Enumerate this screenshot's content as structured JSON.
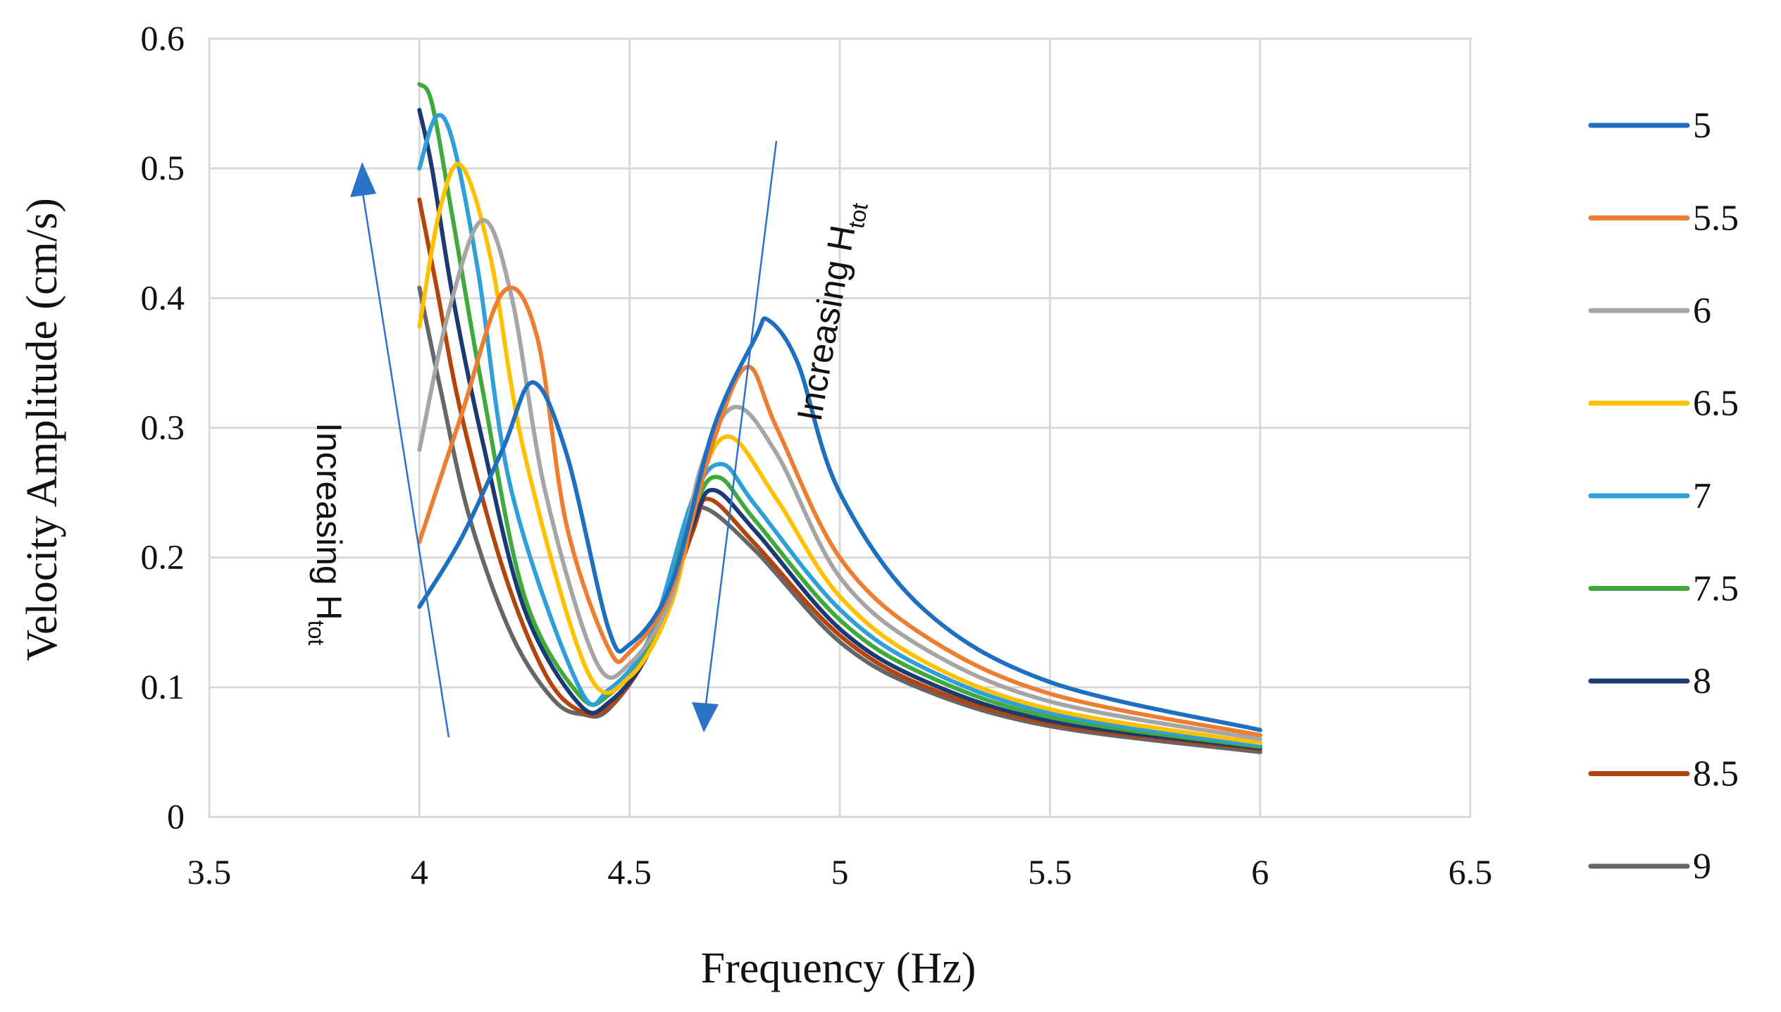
{
  "chart_data": {
    "type": "line",
    "title": "",
    "xlabel": "Frequency (Hz)",
    "ylabel": "Velocity Amplitude (cm/s)",
    "xlim": [
      3.5,
      6.5
    ],
    "ylim": [
      0,
      0.6
    ],
    "xticks": [
      3.5,
      4,
      4.5,
      5,
      5.5,
      6,
      6.5
    ],
    "xtick_labels": [
      "3.5",
      "4",
      "4.5",
      "5",
      "5.5",
      "6",
      "6.5"
    ],
    "yticks": [
      0,
      0.1,
      0.2,
      0.3,
      0.4,
      0.5,
      0.6
    ],
    "ytick_labels": [
      "0",
      "0.1",
      "0.2",
      "0.3",
      "0.4",
      "0.5",
      "0.6"
    ],
    "grid": true,
    "legend_position": "right",
    "series": [
      {
        "name": "5",
        "color": "#1f6fc1",
        "x": [
          4.0,
          4.1,
          4.2,
          4.27,
          4.35,
          4.45,
          4.5,
          4.6,
          4.7,
          4.8,
          4.83,
          4.9,
          5.0,
          5.2,
          5.5,
          6.0
        ],
        "y": [
          0.162,
          0.215,
          0.285,
          0.335,
          0.28,
          0.145,
          0.133,
          0.18,
          0.3,
          0.37,
          0.383,
          0.35,
          0.25,
          0.16,
          0.104,
          0.067
        ]
      },
      {
        "name": "5.5",
        "color": "#ed7d31",
        "x": [
          4.0,
          4.1,
          4.2,
          4.28,
          4.35,
          4.45,
          4.5,
          4.6,
          4.7,
          4.78,
          4.85,
          5.0,
          5.2,
          5.5,
          6.0
        ],
        "y": [
          0.212,
          0.31,
          0.405,
          0.37,
          0.225,
          0.13,
          0.127,
          0.175,
          0.29,
          0.347,
          0.3,
          0.2,
          0.14,
          0.095,
          0.063
        ]
      },
      {
        "name": "6",
        "color": "#a5a5a5",
        "x": [
          4.0,
          4.07,
          4.15,
          4.22,
          4.3,
          4.42,
          4.5,
          4.6,
          4.67,
          4.75,
          4.85,
          5.0,
          5.2,
          5.5,
          6.0
        ],
        "y": [
          0.283,
          0.39,
          0.46,
          0.4,
          0.25,
          0.12,
          0.118,
          0.17,
          0.27,
          0.316,
          0.28,
          0.185,
          0.13,
          0.089,
          0.06
        ]
      },
      {
        "name": "6.5",
        "color": "#ffc000",
        "x": [
          4.0,
          4.05,
          4.1,
          4.17,
          4.25,
          4.4,
          4.5,
          4.6,
          4.67,
          4.74,
          4.85,
          5.0,
          5.2,
          5.5,
          6.0
        ],
        "y": [
          0.378,
          0.47,
          0.502,
          0.43,
          0.28,
          0.112,
          0.108,
          0.165,
          0.26,
          0.293,
          0.245,
          0.17,
          0.12,
          0.083,
          0.057
        ]
      },
      {
        "name": "7",
        "color": "#2e9fd8",
        "x": [
          4.0,
          4.04,
          4.08,
          4.14,
          4.22,
          4.38,
          4.45,
          4.55,
          4.65,
          4.72,
          4.8,
          5.0,
          5.2,
          5.5,
          6.0
        ],
        "y": [
          0.5,
          0.54,
          0.52,
          0.42,
          0.25,
          0.1,
          0.098,
          0.14,
          0.245,
          0.272,
          0.24,
          0.16,
          0.115,
          0.08,
          0.055
        ]
      },
      {
        "name": "7.5",
        "color": "#3faa3b",
        "x": [
          4.0,
          4.03,
          4.08,
          4.15,
          4.25,
          4.38,
          4.45,
          4.55,
          4.65,
          4.71,
          4.8,
          5.0,
          5.2,
          5.5,
          6.0
        ],
        "y": [
          0.565,
          0.55,
          0.46,
          0.33,
          0.17,
          0.094,
          0.094,
          0.135,
          0.235,
          0.262,
          0.228,
          0.152,
          0.11,
          0.077,
          0.054
        ]
      },
      {
        "name": "8",
        "color": "#1b3a74",
        "x": [
          4.0,
          4.03,
          4.08,
          4.15,
          4.25,
          4.38,
          4.45,
          4.55,
          4.65,
          4.7,
          4.8,
          5.0,
          5.2,
          5.5,
          6.0
        ],
        "y": [
          0.545,
          0.5,
          0.4,
          0.29,
          0.16,
          0.087,
          0.088,
          0.13,
          0.225,
          0.252,
          0.22,
          0.145,
          0.105,
          0.074,
          0.053
        ]
      },
      {
        "name": "8.5",
        "color": "#b1450d",
        "x": [
          4.0,
          4.04,
          4.1,
          4.2,
          4.3,
          4.38,
          4.45,
          4.55,
          4.65,
          4.69,
          4.8,
          5.0,
          5.2,
          5.5,
          6.0
        ],
        "y": [
          0.476,
          0.41,
          0.31,
          0.19,
          0.11,
          0.082,
          0.085,
          0.13,
          0.22,
          0.245,
          0.21,
          0.14,
          0.101,
          0.072,
          0.052
        ]
      },
      {
        "name": "9",
        "color": "#666666",
        "x": [
          4.0,
          4.05,
          4.12,
          4.22,
          4.32,
          4.39,
          4.45,
          4.55,
          4.65,
          4.68,
          4.8,
          5.0,
          5.2,
          5.5,
          6.0
        ],
        "y": [
          0.408,
          0.33,
          0.23,
          0.14,
          0.09,
          0.079,
          0.083,
          0.13,
          0.22,
          0.238,
          0.205,
          0.135,
          0.098,
          0.07,
          0.05
        ]
      }
    ],
    "annotations": [
      {
        "id": "left",
        "text": "Increasing H",
        "subscript": "tot"
      },
      {
        "id": "right",
        "text": "Increasing H",
        "subscript": "tot"
      }
    ],
    "arrow_color": "#2a73c8"
  }
}
